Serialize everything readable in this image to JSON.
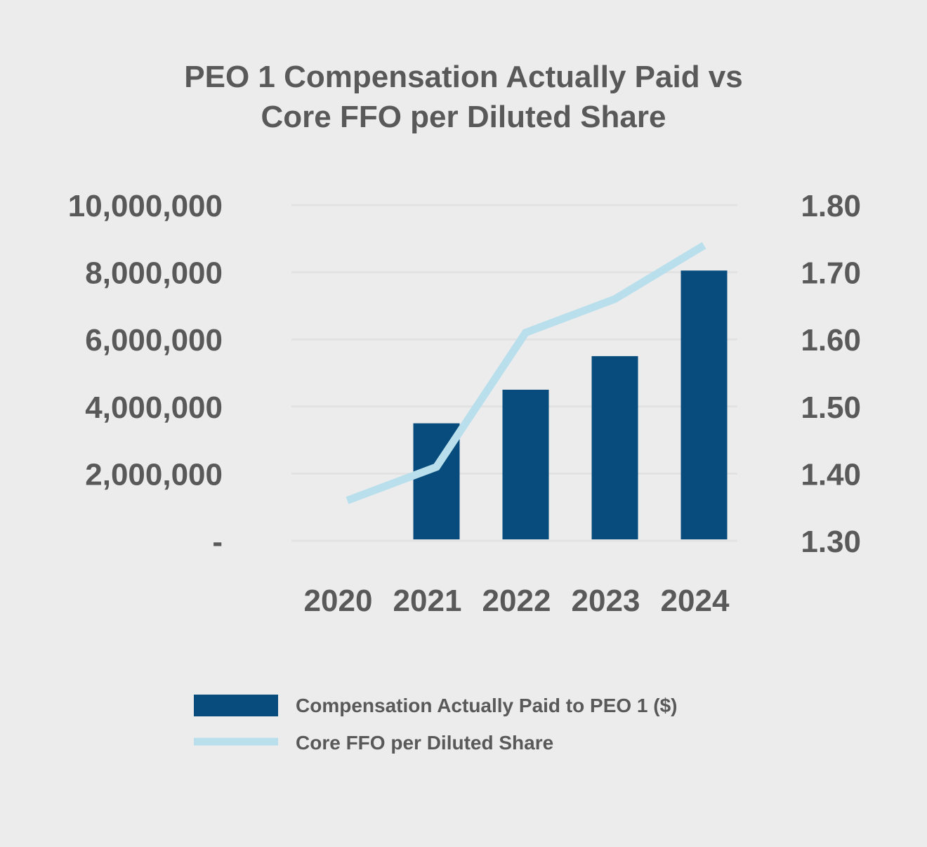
{
  "chart_data": {
    "type": "bar",
    "title": [
      "PEO 1 Compensation Actually Paid vs",
      "Core FFO per Diluted Share"
    ],
    "categories": [
      "2020",
      "2021",
      "2022",
      "2023",
      "2024"
    ],
    "series": [
      {
        "name": "Compensation Actually Paid to PEO 1 ($)",
        "type": "bar",
        "axis": "left",
        "color": "#074c7c",
        "values": [
          0,
          3500000,
          4500000,
          5500000,
          8050000
        ]
      },
      {
        "name": "Core FFO per Diluted Share",
        "type": "line",
        "axis": "right",
        "color": "#b9dfed",
        "values": [
          1.36,
          1.41,
          1.61,
          1.66,
          1.74
        ]
      }
    ],
    "y_left": {
      "ylim": [
        0,
        10000000
      ],
      "ticks": [
        0,
        2000000,
        4000000,
        6000000,
        8000000,
        10000000
      ],
      "tick_labels": [
        "-",
        "2,000,000",
        "4,000,000",
        "6,000,000",
        "8,000,000",
        "10,000,000"
      ]
    },
    "y_right": {
      "ylim": [
        1.3,
        1.8
      ],
      "ticks": [
        1.3,
        1.4,
        1.5,
        1.6,
        1.7,
        1.8
      ],
      "tick_labels": [
        "1.30",
        "1.40",
        "1.50",
        "1.60",
        "1.70",
        "1.80"
      ]
    },
    "grid": true,
    "legend_position": "bottom-center",
    "colors": {
      "background": "#ececec",
      "grid": "#e2e2e2",
      "text": "#595959"
    }
  }
}
